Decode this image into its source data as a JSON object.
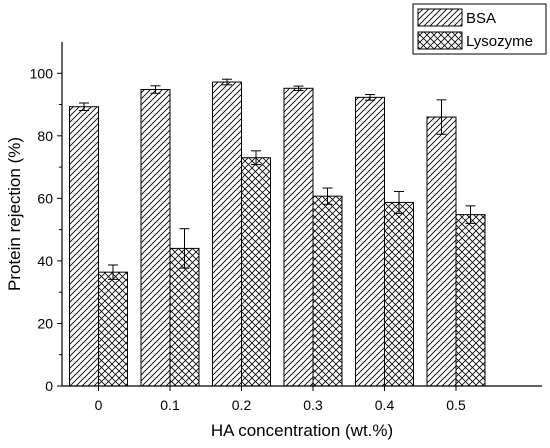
{
  "chart_data": {
    "type": "bar",
    "xlabel": "HA concentration (wt.%)",
    "ylabel": "Protein rejection (%)",
    "categories": [
      "0",
      "0.1",
      "0.2",
      "0.3",
      "0.4",
      "0.5"
    ],
    "ylim": [
      0,
      110
    ],
    "yticks": [
      0,
      20,
      40,
      60,
      80,
      100
    ],
    "legend_position": "top-right",
    "grid": false,
    "series": [
      {
        "name": "BSA",
        "values": [
          89.3,
          94.8,
          97.2,
          95.2,
          92.3,
          86.0
        ],
        "errors": [
          1.2,
          1.2,
          0.9,
          0.7,
          0.9,
          5.5
        ],
        "pattern": "diagonal-hatch"
      },
      {
        "name": "Lysozyme",
        "values": [
          36.4,
          44.0,
          73.0,
          60.7,
          58.7,
          54.8
        ],
        "errors": [
          2.3,
          6.3,
          2.2,
          2.6,
          3.5,
          2.8
        ],
        "pattern": "cross-hatch"
      }
    ]
  }
}
